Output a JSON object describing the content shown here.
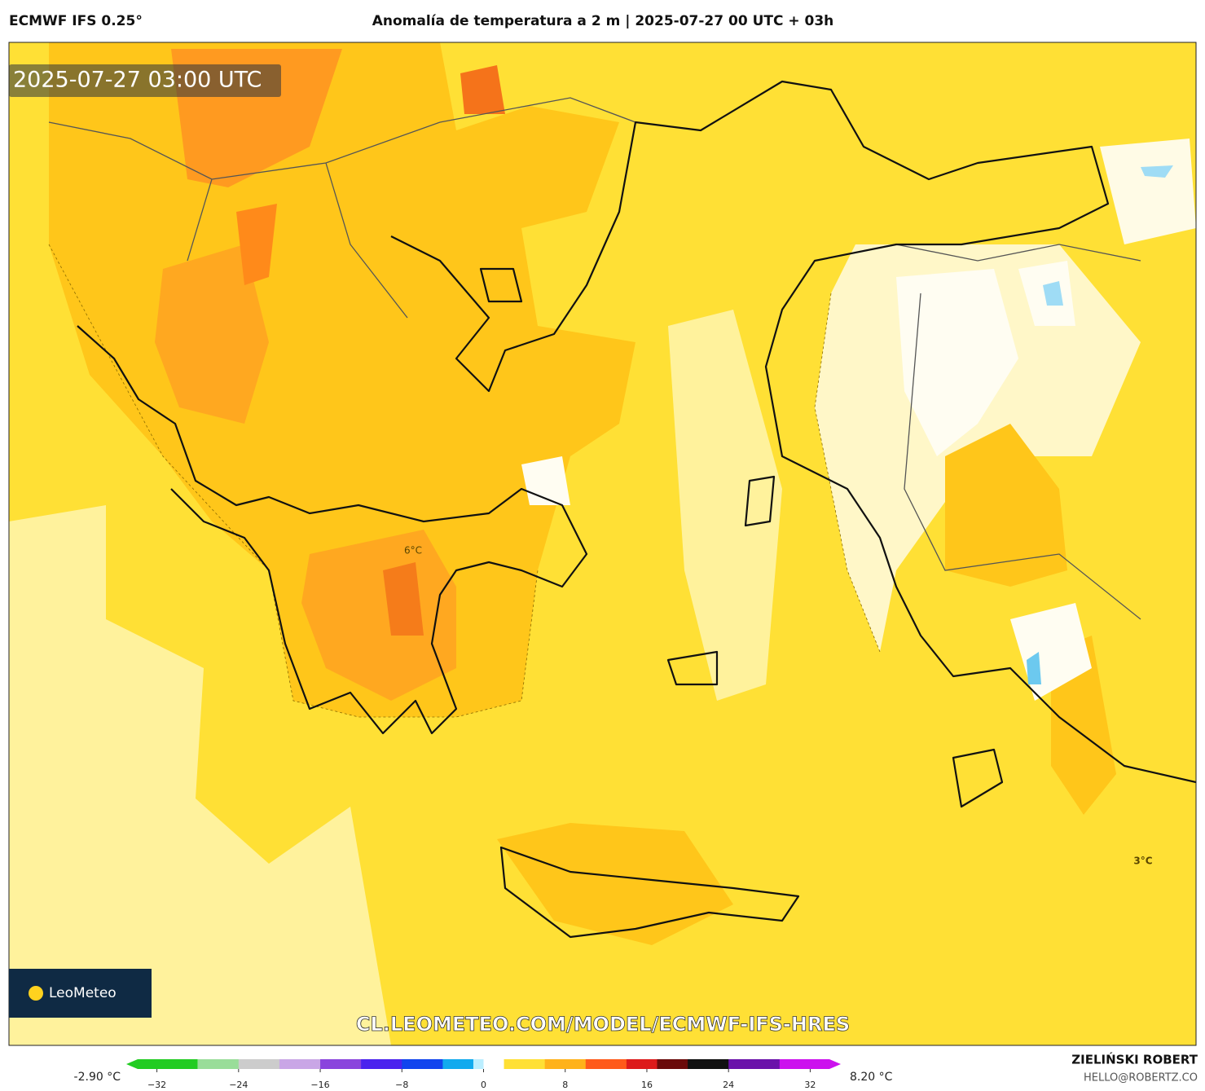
{
  "header": {
    "model": "ECMWF IFS 0.25°",
    "title": "Anomalía de temperatura a 2 m | 2025-07-27 00 UTC + 03h"
  },
  "map": {
    "timestamp": "2025-07-27 03:00 UTC",
    "contour_labels": [
      "6°C",
      "3°C"
    ],
    "logo": "LeoMeteo",
    "url": "CL.LEOMETEO.COM/MODEL/ECMWF-IFS-HRES"
  },
  "colorbar": {
    "min_label": "-2.90 °C",
    "max_label": "8.20 °C",
    "lim": [
      -35,
      35
    ],
    "ticks": [
      {
        "value": -32,
        "label": "−32"
      },
      {
        "value": -24,
        "label": "−24"
      },
      {
        "value": -16,
        "label": "−16"
      },
      {
        "value": -8,
        "label": "−8"
      },
      0,
      8,
      16,
      24,
      32
    ],
    "stops": [
      {
        "value": -35,
        "color": "#22cc22"
      },
      {
        "value": -28,
        "color": "#99dd99"
      },
      {
        "value": -24,
        "color": "#cccccc"
      },
      {
        "value": -20,
        "color": "#c9a6e6"
      },
      {
        "value": -16,
        "color": "#8a44dd"
      },
      {
        "value": -12,
        "color": "#4a22ee"
      },
      {
        "value": -8,
        "color": "#1144ee"
      },
      {
        "value": -4,
        "color": "#11aaee"
      },
      {
        "value": -1,
        "color": "#bbeeff"
      },
      {
        "value": 0,
        "color": "#ffffff"
      },
      {
        "value": 2,
        "color": "#ffe035"
      },
      {
        "value": 6,
        "color": "#ffb21a"
      },
      {
        "value": 10,
        "color": "#ff5a1a"
      },
      {
        "value": 14,
        "color": "#dd1a1a"
      },
      {
        "value": 17,
        "color": "#6a0a0a"
      },
      {
        "value": 20,
        "color": "#111111"
      },
      {
        "value": 24,
        "color": "#6a11aa"
      },
      {
        "value": 29,
        "color": "#cc11ee"
      },
      {
        "value": 35,
        "color": "#ff11ff"
      }
    ]
  },
  "footer": {
    "author": "ZIELIŃSKI ROBERT",
    "email": "HELLO@ROBERTZ.CO"
  }
}
